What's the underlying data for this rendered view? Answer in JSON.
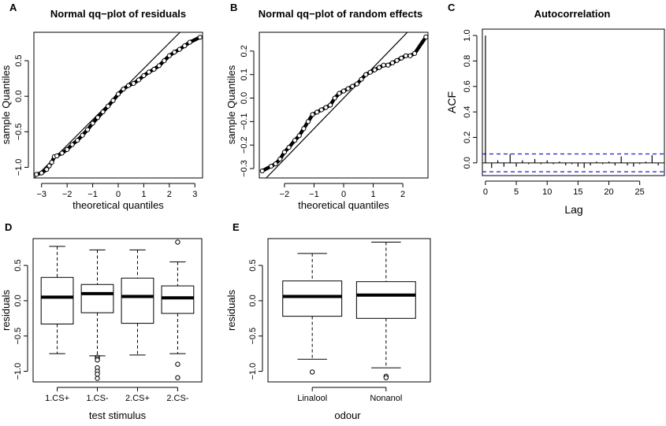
{
  "chart_data": [
    {
      "id": "A",
      "type": "scatter",
      "title": "Normal qq−plot of residuals",
      "xlabel": "theoretical quantiles",
      "ylabel": "sample Quantiles",
      "xlim": [
        -3.3,
        3.3
      ],
      "ylim": [
        -1.15,
        0.9
      ],
      "xticks": [
        -3,
        -2,
        -1,
        0,
        1,
        2,
        3
      ],
      "yticks": [
        -1.0,
        -0.5,
        0.0,
        0.5
      ],
      "xtick_labels": [
        "−3",
        "−2",
        "−1",
        "0",
        "1",
        "2",
        "3"
      ],
      "ytick_labels": [
        "−1.0",
        "−0.5",
        "0.0",
        "0.5"
      ],
      "refline": {
        "intercept": 0.03,
        "slope": 0.36
      },
      "points": [
        [
          -3.2,
          -1.1
        ],
        [
          -3.0,
          -1.08
        ],
        [
          -2.8,
          -1.03
        ],
        [
          -2.7,
          -0.98
        ],
        [
          -2.6,
          -0.93
        ],
        [
          -2.5,
          -0.85
        ],
        [
          -2.4,
          -0.84
        ],
        [
          -2.2,
          -0.8
        ],
        [
          -2.0,
          -0.75
        ],
        [
          -1.8,
          -0.68
        ],
        [
          -1.6,
          -0.62
        ],
        [
          -1.4,
          -0.55
        ],
        [
          -1.2,
          -0.47
        ],
        [
          -1.0,
          -0.38
        ],
        [
          -0.8,
          -0.3
        ],
        [
          -0.6,
          -0.22
        ],
        [
          -0.4,
          -0.14
        ],
        [
          -0.2,
          -0.06
        ],
        [
          0.0,
          0.03
        ],
        [
          0.2,
          0.1
        ],
        [
          0.4,
          0.15
        ],
        [
          0.6,
          0.18
        ],
        [
          0.8,
          0.23
        ],
        [
          1.0,
          0.29
        ],
        [
          1.2,
          0.34
        ],
        [
          1.4,
          0.38
        ],
        [
          1.6,
          0.43
        ],
        [
          1.8,
          0.5
        ],
        [
          2.0,
          0.57
        ],
        [
          2.2,
          0.62
        ],
        [
          2.4,
          0.66
        ],
        [
          2.6,
          0.71
        ],
        [
          2.8,
          0.76
        ],
        [
          3.2,
          0.83
        ]
      ]
    },
    {
      "id": "B",
      "type": "scatter",
      "title": "Normal qq−plot of random effects",
      "xlabel": "theoretical quantiles",
      "ylabel": "sample Quantiles",
      "xlim": [
        -2.85,
        2.85
      ],
      "ylim": [
        -0.34,
        0.28
      ],
      "xticks": [
        -2,
        -1,
        0,
        1,
        2
      ],
      "yticks": [
        -0.3,
        -0.2,
        -0.1,
        0.0,
        0.1,
        0.2
      ],
      "xtick_labels": [
        "−2",
        "−1",
        "0",
        "1",
        "2"
      ],
      "ytick_labels": [
        "−0.3",
        "−0.2",
        "−0.1",
        "0.0",
        "0.1",
        "0.2"
      ],
      "refline": {
        "intercept": 0.0,
        "slope": 0.13
      },
      "points": [
        [
          -2.75,
          -0.31
        ],
        [
          -2.45,
          -0.29
        ],
        [
          -2.3,
          -0.28
        ],
        [
          -2.15,
          -0.26
        ],
        [
          -2.0,
          -0.23
        ],
        [
          -1.85,
          -0.21
        ],
        [
          -1.65,
          -0.18
        ],
        [
          -1.5,
          -0.16
        ],
        [
          -1.35,
          -0.13
        ],
        [
          -1.2,
          -0.1
        ],
        [
          -1.05,
          -0.07
        ],
        [
          -0.9,
          -0.06
        ],
        [
          -0.75,
          -0.05
        ],
        [
          -0.6,
          -0.04
        ],
        [
          -0.45,
          -0.03
        ],
        [
          -0.3,
          0.0
        ],
        [
          -0.15,
          0.02
        ],
        [
          0.0,
          0.03
        ],
        [
          0.15,
          0.04
        ],
        [
          0.3,
          0.05
        ],
        [
          0.45,
          0.06
        ],
        [
          0.6,
          0.08
        ],
        [
          0.75,
          0.1
        ],
        [
          0.9,
          0.11
        ],
        [
          1.05,
          0.12
        ],
        [
          1.2,
          0.13
        ],
        [
          1.35,
          0.14
        ],
        [
          1.5,
          0.14
        ],
        [
          1.65,
          0.15
        ],
        [
          1.8,
          0.16
        ],
        [
          1.95,
          0.17
        ],
        [
          2.1,
          0.18
        ],
        [
          2.25,
          0.18
        ],
        [
          2.4,
          0.19
        ],
        [
          2.78,
          0.26
        ]
      ]
    },
    {
      "id": "C",
      "type": "bar",
      "title": "Autocorrelation",
      "xlabel": "Lag",
      "ylabel": "ACF",
      "xlim": [
        -0.5,
        29
      ],
      "ylim": [
        -0.1,
        1.05
      ],
      "xticks": [
        0,
        5,
        10,
        15,
        20,
        25
      ],
      "yticks": [
        0.0,
        0.2,
        0.4,
        0.6,
        0.8,
        1.0
      ],
      "xtick_labels": [
        "0",
        "5",
        "10",
        "15",
        "20",
        "25"
      ],
      "ytick_labels": [
        "0.0",
        "0.2",
        "0.4",
        "0.6",
        "0.8",
        "1.0"
      ],
      "confidence_band": 0.07,
      "lags": [
        0,
        1,
        2,
        3,
        4,
        5,
        6,
        7,
        8,
        9,
        10,
        11,
        12,
        13,
        14,
        15,
        16,
        17,
        18,
        19,
        20,
        21,
        22,
        23,
        24,
        25,
        26,
        27,
        28
      ],
      "acf": [
        1.0,
        -0.04,
        0.02,
        -0.03,
        0.07,
        -0.03,
        0.02,
        -0.01,
        0.03,
        -0.01,
        0.02,
        -0.01,
        0.01,
        -0.02,
        -0.01,
        -0.03,
        -0.04,
        -0.02,
        0.01,
        -0.01,
        0.01,
        -0.02,
        0.05,
        -0.02,
        -0.03,
        -0.01,
        0.01,
        0.06,
        -0.02
      ]
    },
    {
      "id": "D",
      "type": "box",
      "xlabel": "test stimulus",
      "ylabel": "residuals",
      "ylim": [
        -1.15,
        0.88
      ],
      "yticks": [
        -1.0,
        -0.5,
        0.0,
        0.5
      ],
      "ytick_labels": [
        "−1.0",
        "−0.5",
        "0.0",
        "0.5"
      ],
      "categories": [
        "1.CS+",
        "1.CS-",
        "2.CS+",
        "2.CS-"
      ],
      "boxes": [
        {
          "min": -0.75,
          "q1": -0.33,
          "median": 0.05,
          "q3": 0.33,
          "max": 0.77,
          "outliers": []
        },
        {
          "min": -0.78,
          "q1": -0.17,
          "median": 0.1,
          "q3": 0.23,
          "max": 0.72,
          "outliers": [
            -0.8,
            -0.82,
            -0.84,
            -0.95,
            -1.0,
            -1.04,
            -1.1
          ]
        },
        {
          "min": -0.77,
          "q1": -0.32,
          "median": 0.06,
          "q3": 0.32,
          "max": 0.72,
          "outliers": []
        },
        {
          "min": -0.75,
          "q1": -0.18,
          "median": 0.04,
          "q3": 0.21,
          "max": 0.55,
          "outliers": [
            0.83,
            -0.9,
            -1.09
          ]
        }
      ]
    },
    {
      "id": "E",
      "type": "box",
      "xlabel": "odour",
      "ylabel": "residuals",
      "ylim": [
        -1.15,
        0.88
      ],
      "yticks": [
        -1.0,
        -0.5,
        0.0,
        0.5
      ],
      "ytick_labels": [
        "−1.0",
        "−0.5",
        "0.0",
        "0.5"
      ],
      "categories": [
        "Linalool",
        "Nonanol"
      ],
      "boxes": [
        {
          "min": -0.83,
          "q1": -0.22,
          "median": 0.06,
          "q3": 0.28,
          "max": 0.67,
          "outliers": [
            -1.01
          ]
        },
        {
          "min": -0.95,
          "q1": -0.25,
          "median": 0.08,
          "q3": 0.27,
          "max": 0.83,
          "outliers": [
            -1.07,
            -1.09
          ]
        }
      ]
    }
  ],
  "colors": {
    "band": "#1f1fd6",
    "ink": "#000000"
  }
}
